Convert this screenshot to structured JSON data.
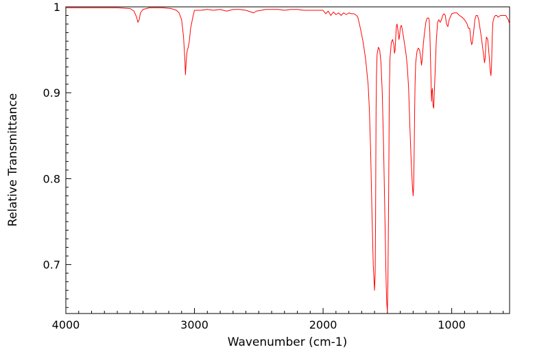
{
  "chart_data": {
    "type": "line",
    "title": "",
    "xlabel": "Wavenumber (cm-1)",
    "ylabel": "Relative Transmittance",
    "xlim": [
      4000,
      550
    ],
    "ylim": [
      0.643,
      1.0
    ],
    "x_reversed": true,
    "grid": false,
    "x_ticks": [
      {
        "value": 4000,
        "label": "4000"
      },
      {
        "value": 3000,
        "label": "3000"
      },
      {
        "value": 2000,
        "label": "2000"
      },
      {
        "value": 1000,
        "label": "1000"
      }
    ],
    "y_ticks": [
      {
        "value": 1.0,
        "label": "1"
      },
      {
        "value": 0.9,
        "label": "0.9"
      },
      {
        "value": 0.8,
        "label": "0.8"
      },
      {
        "value": 0.7,
        "label": "0.7"
      }
    ],
    "line_color": "#ff0000",
    "series": [
      {
        "name": "",
        "x": [
          4000,
          3900,
          3800,
          3700,
          3600,
          3500,
          3470,
          3450,
          3440,
          3430,
          3420,
          3400,
          3350,
          3250,
          3180,
          3140,
          3120,
          3100,
          3085,
          3075,
          3070,
          3065,
          3060,
          3055,
          3050,
          3040,
          3030,
          3010,
          3000,
          2990,
          2950,
          2900,
          2850,
          2800,
          2750,
          2700,
          2650,
          2600,
          2560,
          2540,
          2520,
          2480,
          2450,
          2400,
          2350,
          2300,
          2250,
          2200,
          2150,
          2100,
          2050,
          2000,
          1980,
          1960,
          1940,
          1920,
          1900,
          1880,
          1860,
          1840,
          1820,
          1800,
          1780,
          1760,
          1740,
          1730,
          1710,
          1690,
          1670,
          1650,
          1640,
          1630,
          1620,
          1610,
          1600,
          1595,
          1592,
          1590,
          1588,
          1585,
          1580,
          1570,
          1560,
          1550,
          1540,
          1530,
          1520,
          1510,
          1505,
          1500,
          1496,
          1492,
          1488,
          1485,
          1480,
          1470,
          1460,
          1450,
          1445,
          1440,
          1435,
          1430,
          1425,
          1420,
          1410,
          1405,
          1400,
          1395,
          1390,
          1385,
          1375,
          1365,
          1355,
          1345,
          1335,
          1325,
          1315,
          1305,
          1300,
          1296,
          1292,
          1288,
          1285,
          1280,
          1270,
          1260,
          1250,
          1240,
          1235,
          1230,
          1220,
          1210,
          1200,
          1190,
          1180,
          1175,
          1170,
          1165,
          1160,
          1157,
          1155,
          1150,
          1145,
          1140,
          1130,
          1120,
          1110,
          1100,
          1090,
          1080,
          1070,
          1060,
          1050,
          1040,
          1030,
          1020,
          1000,
          980,
          960,
          940,
          920,
          900,
          880,
          870,
          860,
          850,
          845,
          840,
          830,
          820,
          810,
          800,
          790,
          780,
          770,
          760,
          750,
          745,
          740,
          735,
          730,
          720,
          710,
          700,
          695,
          690,
          685,
          680,
          670,
          660,
          650,
          640,
          620,
          600,
          580,
          560,
          550
        ],
        "y": [
          0.999,
          0.999,
          0.999,
          0.999,
          0.999,
          0.998,
          0.995,
          0.988,
          0.982,
          0.985,
          0.993,
          0.997,
          0.999,
          0.999,
          0.998,
          0.996,
          0.993,
          0.985,
          0.965,
          0.94,
          0.921,
          0.935,
          0.945,
          0.95,
          0.952,
          0.96,
          0.975,
          0.99,
          0.996,
          0.996,
          0.996,
          0.997,
          0.996,
          0.997,
          0.995,
          0.997,
          0.997,
          0.996,
          0.994,
          0.993,
          0.995,
          0.996,
          0.997,
          0.997,
          0.997,
          0.996,
          0.997,
          0.997,
          0.996,
          0.996,
          0.996,
          0.996,
          0.992,
          0.995,
          0.99,
          0.994,
          0.991,
          0.993,
          0.99,
          0.993,
          0.991,
          0.993,
          0.992,
          0.992,
          0.99,
          0.988,
          0.975,
          0.96,
          0.94,
          0.91,
          0.88,
          0.83,
          0.76,
          0.7,
          0.67,
          0.69,
          0.75,
          0.82,
          0.88,
          0.92,
          0.945,
          0.953,
          0.95,
          0.935,
          0.9,
          0.84,
          0.76,
          0.68,
          0.655,
          0.645,
          0.68,
          0.75,
          0.83,
          0.9,
          0.94,
          0.958,
          0.962,
          0.956,
          0.946,
          0.95,
          0.965,
          0.978,
          0.98,
          0.975,
          0.962,
          0.967,
          0.975,
          0.978,
          0.978,
          0.974,
          0.965,
          0.955,
          0.945,
          0.93,
          0.905,
          0.86,
          0.82,
          0.79,
          0.78,
          0.79,
          0.83,
          0.88,
          0.91,
          0.935,
          0.948,
          0.952,
          0.95,
          0.94,
          0.932,
          0.938,
          0.958,
          0.972,
          0.983,
          0.987,
          0.987,
          0.985,
          0.97,
          0.94,
          0.91,
          0.89,
          0.9,
          0.905,
          0.885,
          0.882,
          0.92,
          0.96,
          0.982,
          0.985,
          0.982,
          0.985,
          0.99,
          0.992,
          0.99,
          0.98,
          0.977,
          0.985,
          0.992,
          0.993,
          0.993,
          0.99,
          0.988,
          0.985,
          0.98,
          0.975,
          0.975,
          0.96,
          0.956,
          0.958,
          0.97,
          0.985,
          0.99,
          0.99,
          0.985,
          0.975,
          0.965,
          0.953,
          0.942,
          0.935,
          0.94,
          0.955,
          0.965,
          0.962,
          0.945,
          0.925,
          0.92,
          0.932,
          0.965,
          0.982,
          0.988,
          0.99,
          0.99,
          0.988,
          0.99,
          0.99,
          0.99,
          0.985,
          0.98
        ]
      }
    ]
  }
}
